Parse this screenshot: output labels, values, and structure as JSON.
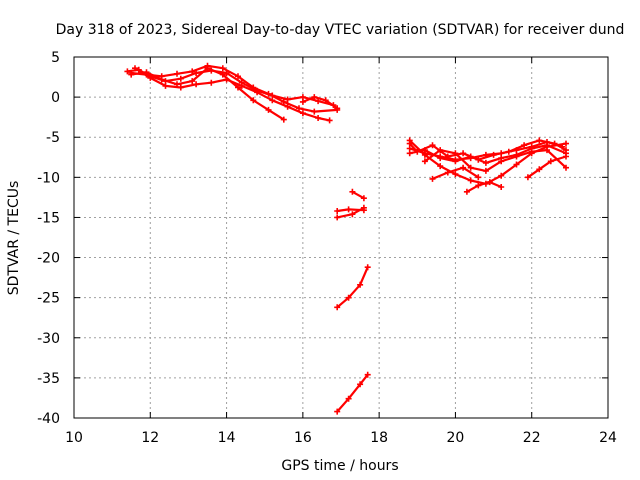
{
  "chart_data": {
    "type": "scatter",
    "title": "Day 318 of 2023, Sidereal Day-to-day VTEC variation (SDTVAR) for receiver dund",
    "xlabel": "GPS time / hours",
    "ylabel": "SDTVAR / TECUs",
    "xlim": [
      10,
      24
    ],
    "ylim": [
      -40,
      5
    ],
    "xticks": [
      10,
      12,
      14,
      16,
      18,
      20,
      22,
      24
    ],
    "yticks": [
      5,
      0,
      -5,
      -10,
      -15,
      -20,
      -25,
      -30,
      -35,
      -40
    ],
    "grid": true,
    "legend": "none",
    "color": "#ff0000",
    "series": [
      {
        "x": [
          11.4,
          11.7,
          12.0,
          12.4,
          12.8,
          13.2,
          13.6,
          14.0,
          14.4,
          14.8,
          15.2,
          15.6,
          16.0,
          16.4,
          16.8
        ],
        "y": [
          3.2,
          3.4,
          2.6,
          2.0,
          2.3,
          3.0,
          3.3,
          3.0,
          1.8,
          0.8,
          0.2,
          -0.3,
          0.0,
          -0.5,
          -1.0
        ]
      },
      {
        "x": [
          11.5,
          11.9,
          12.3,
          12.7,
          13.1,
          13.5,
          13.9,
          14.3,
          14.7,
          15.1,
          15.5
        ],
        "y": [
          2.8,
          3.1,
          2.2,
          1.6,
          2.0,
          3.6,
          2.8,
          1.2,
          -0.4,
          -1.6,
          -2.8
        ]
      },
      {
        "x": [
          11.6,
          12.0,
          12.4,
          12.8,
          13.2,
          13.6,
          14.0,
          14.4,
          14.8,
          15.2,
          15.6,
          16.0,
          16.4,
          16.7
        ],
        "y": [
          3.6,
          2.4,
          1.4,
          1.2,
          1.6,
          1.8,
          2.2,
          1.4,
          0.6,
          -0.4,
          -1.2,
          -2.0,
          -2.6,
          -2.9
        ]
      },
      {
        "x": [
          11.5,
          11.9,
          12.3,
          12.7,
          13.1,
          13.5,
          13.9,
          14.3,
          14.7,
          15.1,
          15.5,
          15.9,
          16.3,
          16.9
        ],
        "y": [
          3.0,
          2.8,
          2.6,
          2.9,
          3.2,
          3.9,
          3.6,
          2.6,
          1.2,
          0.4,
          -0.6,
          -1.4,
          -1.8,
          -1.6
        ]
      },
      {
        "x": [
          16.0,
          16.3,
          16.6,
          16.9
        ],
        "y": [
          -0.6,
          0.0,
          -0.4,
          -1.4
        ]
      },
      {
        "x": [
          17.3,
          17.6
        ],
        "y": [
          -11.8,
          -12.6
        ]
      },
      {
        "x": [
          16.9,
          17.2,
          17.6
        ],
        "y": [
          -14.2,
          -14.0,
          -14.1
        ]
      },
      {
        "x": [
          16.9,
          17.3,
          17.6
        ],
        "y": [
          -15.0,
          -14.6,
          -13.8
        ]
      },
      {
        "x": [
          16.9,
          17.2,
          17.5,
          17.7
        ],
        "y": [
          -26.2,
          -25.0,
          -23.4,
          -21.2
        ]
      },
      {
        "x": [
          16.9,
          17.2,
          17.5,
          17.7
        ],
        "y": [
          -39.2,
          -37.6,
          -35.8,
          -34.6
        ]
      },
      {
        "x": [
          18.8,
          19.2,
          19.6,
          20.0,
          20.4,
          20.8,
          21.2,
          21.6,
          22.0,
          22.4,
          22.8
        ],
        "y": [
          -6.4,
          -7.0,
          -7.4,
          -7.8,
          -7.6,
          -7.2,
          -7.0,
          -6.6,
          -6.2,
          -5.6,
          -6.2
        ]
      },
      {
        "x": [
          18.8,
          19.2,
          19.6,
          20.0,
          20.4,
          20.8,
          21.2,
          21.6,
          22.0,
          22.4,
          22.9
        ],
        "y": [
          -7.0,
          -6.6,
          -7.6,
          -8.0,
          -7.4,
          -8.2,
          -7.6,
          -7.2,
          -6.4,
          -6.0,
          -7.0
        ]
      },
      {
        "x": [
          18.8,
          19.2,
          19.6,
          20.0,
          20.4,
          20.8,
          21.2,
          21.6,
          22.0,
          22.4,
          22.9
        ],
        "y": [
          -5.4,
          -7.2,
          -8.6,
          -9.6,
          -10.4,
          -10.8,
          -9.8,
          -8.4,
          -7.0,
          -6.2,
          -5.8
        ]
      },
      {
        "x": [
          19.2,
          19.6,
          20.0,
          20.4,
          20.8,
          21.2,
          21.6,
          22.0,
          22.4,
          22.9
        ],
        "y": [
          -8.0,
          -6.6,
          -7.0,
          -8.8,
          -9.2,
          -8.0,
          -7.4,
          -6.8,
          -6.6,
          -8.8
        ]
      },
      {
        "x": [
          19.4,
          19.8,
          20.2,
          20.6
        ],
        "y": [
          -10.2,
          -9.4,
          -8.8,
          -10.0
        ]
      },
      {
        "x": [
          20.3,
          20.6,
          20.9,
          21.2
        ],
        "y": [
          -11.8,
          -11.0,
          -10.6,
          -11.2
        ]
      },
      {
        "x": [
          21.9,
          22.2,
          22.5,
          22.9
        ],
        "y": [
          -10.0,
          -9.0,
          -8.0,
          -7.4
        ]
      },
      {
        "x": [
          18.8,
          19.0,
          19.4,
          19.8,
          20.2,
          20.6,
          21.0,
          21.4,
          21.8,
          22.2,
          22.6,
          22.9
        ],
        "y": [
          -5.8,
          -6.8,
          -6.0,
          -7.4,
          -7.0,
          -7.8,
          -7.2,
          -6.8,
          -6.0,
          -5.4,
          -5.8,
          -6.6
        ]
      }
    ]
  }
}
